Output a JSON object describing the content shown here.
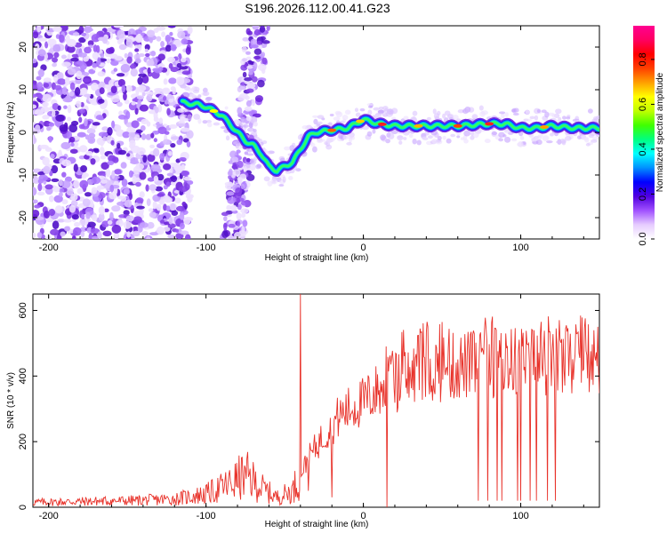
{
  "title": "S196.2026.112.00.41.G23",
  "chart_data": [
    {
      "type": "heatmap",
      "xlabel": "Height of straight line (km)",
      "ylabel": "Frequency (Hz)",
      "xlim": [
        -210,
        150
      ],
      "ylim": [
        -25,
        25
      ],
      "xticks": [
        -200,
        -100,
        0,
        100
      ],
      "xtick_labels": [
        "-200",
        "-100",
        "0",
        "100"
      ],
      "yticks": [
        -20,
        -10,
        0,
        10,
        20
      ],
      "ytick_labels": [
        "-20",
        "-10",
        "0",
        "10",
        "20"
      ],
      "colorbar": {
        "label": "Normalized spectral amplitude",
        "range": [
          0,
          0.95
        ],
        "ticks": [
          0.0,
          0.2,
          0.4,
          0.6,
          0.8
        ],
        "tick_labels": [
          "0.0",
          "0.2",
          "0.4",
          "0.6",
          "0.8"
        ],
        "colors": [
          "#ffffff",
          "#e6ccff",
          "#a050ff",
          "#5000e0",
          "#0000ff",
          "#0090ff",
          "#00ffff",
          "#00ff80",
          "#40ff00",
          "#c0ff00",
          "#ffff00",
          "#ffa000",
          "#ff4000",
          "#ff0000",
          "#ff0060",
          "#ff0090"
        ]
      },
      "ridge": [
        {
          "x": -115,
          "y": 7
        },
        {
          "x": -105,
          "y": 6.5
        },
        {
          "x": -100,
          "y": 6
        },
        {
          "x": -95,
          "y": 5
        },
        {
          "x": -90,
          "y": 4
        },
        {
          "x": -85,
          "y": 2
        },
        {
          "x": -80,
          "y": 0
        },
        {
          "x": -75,
          "y": -2
        },
        {
          "x": -70,
          "y": -3
        },
        {
          "x": -65,
          "y": -5
        },
        {
          "x": -60,
          "y": -8
        },
        {
          "x": -55,
          "y": -9
        },
        {
          "x": -50,
          "y": -8
        },
        {
          "x": -45,
          "y": -7
        },
        {
          "x": -40,
          "y": -4
        },
        {
          "x": -35,
          "y": -1
        },
        {
          "x": -30,
          "y": 0
        },
        {
          "x": -20,
          "y": 0.5
        },
        {
          "x": -10,
          "y": 1
        },
        {
          "x": 0,
          "y": 3
        },
        {
          "x": 10,
          "y": 2
        },
        {
          "x": 20,
          "y": 1.5
        },
        {
          "x": 40,
          "y": 1.5
        },
        {
          "x": 60,
          "y": 1.5
        },
        {
          "x": 80,
          "y": 2
        },
        {
          "x": 90,
          "y": 2
        },
        {
          "x": 100,
          "y": 1
        },
        {
          "x": 110,
          "y": 1
        },
        {
          "x": 120,
          "y": 1.5
        },
        {
          "x": 135,
          "y": 1
        },
        {
          "x": 150,
          "y": 1
        }
      ]
    },
    {
      "type": "line",
      "xlabel": "Height of straight line (km)",
      "ylabel": "SNR (10 * v/v)",
      "xlim": [
        -210,
        150
      ],
      "ylim": [
        0,
        650
      ],
      "xticks": [
        -200,
        -100,
        0,
        100
      ],
      "xtick_labels": [
        "-200",
        "-100",
        "0",
        "100"
      ],
      "yticks": [
        0,
        200,
        400,
        600
      ],
      "ytick_labels": [
        "0",
        "200",
        "400",
        "600"
      ],
      "series": [
        {
          "name": "SNR",
          "color": "#e8322a",
          "envelope": [
            {
              "x": -210,
              "y": 15
            },
            {
              "x": -150,
              "y": 20
            },
            {
              "x": -120,
              "y": 25
            },
            {
              "x": -100,
              "y": 40
            },
            {
              "x": -85,
              "y": 70
            },
            {
              "x": -75,
              "y": 100
            },
            {
              "x": -65,
              "y": 60
            },
            {
              "x": -55,
              "y": 30
            },
            {
              "x": -45,
              "y": 50
            },
            {
              "x": -35,
              "y": 150
            },
            {
              "x": -25,
              "y": 220
            },
            {
              "x": -15,
              "y": 280
            },
            {
              "x": -5,
              "y": 310
            },
            {
              "x": 0,
              "y": 320
            },
            {
              "x": 10,
              "y": 360
            },
            {
              "x": 20,
              "y": 380
            },
            {
              "x": 40,
              "y": 420
            },
            {
              "x": 60,
              "y": 430
            },
            {
              "x": 80,
              "y": 440
            },
            {
              "x": 100,
              "y": 445
            },
            {
              "x": 120,
              "y": 440
            },
            {
              "x": 150,
              "y": 440
            }
          ],
          "spikes": [
            {
              "x": -40,
              "y": 650
            },
            {
              "x": -35,
              "y": 50
            },
            {
              "x": -20,
              "y": 30
            },
            {
              "x": 15,
              "y": 0
            },
            {
              "x": 73,
              "y": 20
            },
            {
              "x": 79,
              "y": 20
            },
            {
              "x": 85,
              "y": 20
            },
            {
              "x": 88,
              "y": 20
            },
            {
              "x": 98,
              "y": 20
            },
            {
              "x": 100,
              "y": 20
            },
            {
              "x": 106,
              "y": 20
            },
            {
              "x": 110,
              "y": 20
            },
            {
              "x": 117,
              "y": 20
            },
            {
              "x": 122,
              "y": 20
            }
          ]
        }
      ]
    }
  ]
}
